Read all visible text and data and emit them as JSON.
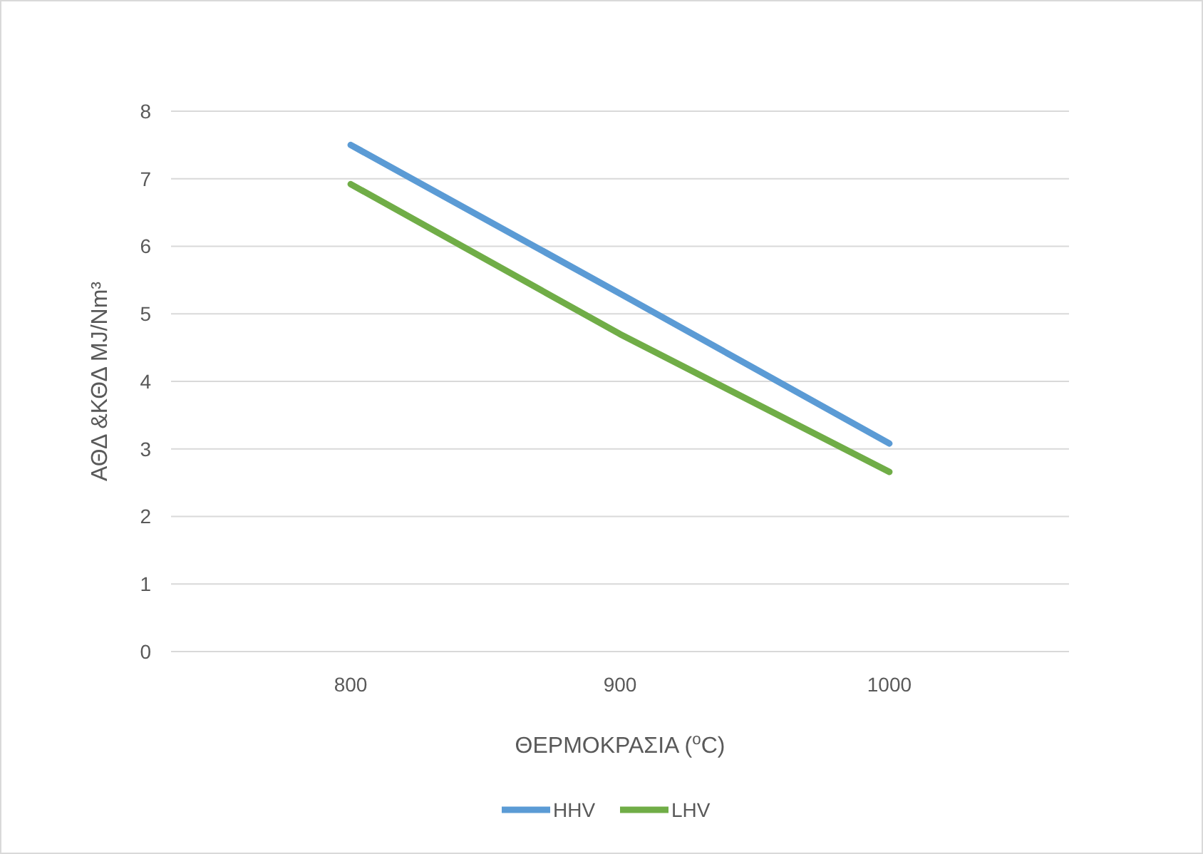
{
  "chart_data": {
    "type": "line",
    "xlabel": "ΘΕΡΜΟΚΡΑΣΙΑ ($^{o}$C)",
    "ylabel": "ΑΘΔ &ΚΘΔ MJ/Nm³",
    "categories": [
      "800",
      "900",
      "1000"
    ],
    "series": [
      {
        "name": "HHV",
        "color": "#5b9bd5",
        "values": [
          7.5,
          5.3,
          3.08
        ]
      },
      {
        "name": "LHV",
        "color": "#70ad47",
        "values": [
          6.92,
          4.7,
          2.66
        ]
      }
    ],
    "ylim": [
      0,
      8
    ],
    "yticks": [
      0,
      1,
      2,
      3,
      4,
      5,
      6,
      7,
      8
    ],
    "grid": "y",
    "legend": "bottom",
    "marker": "none",
    "line_style": "solid"
  }
}
